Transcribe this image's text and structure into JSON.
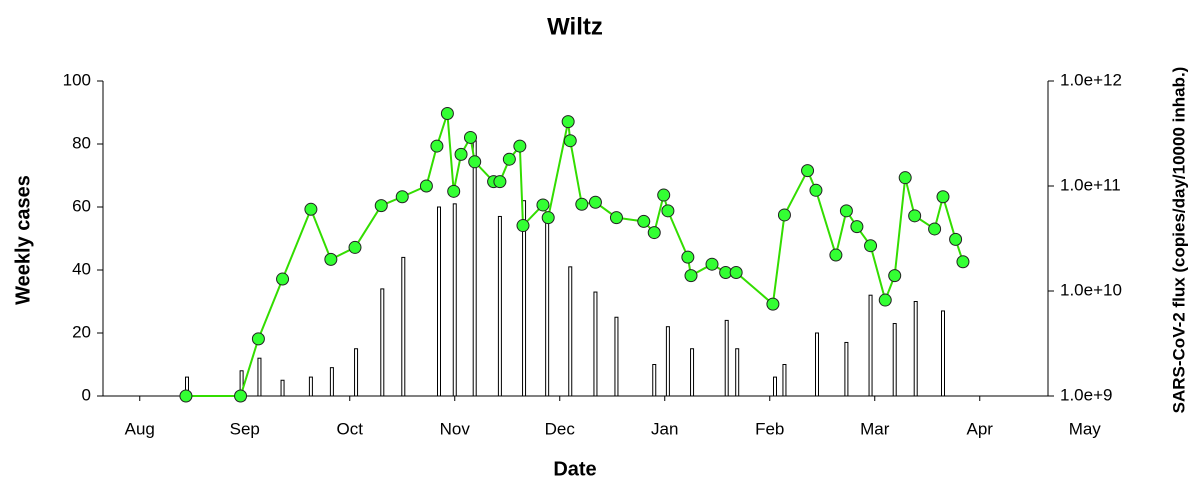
{
  "chart_data": {
    "type": "bar",
    "title": "Wiltz",
    "x_label": "Date",
    "y_label": "Weekly cases",
    "y2_label": "SARS-CoV-2 flux (copies/day/10000 inhab.)",
    "xlim": [
      0.15,
      9.15
    ],
    "xticks": [
      {
        "value": 0.5,
        "label": "Aug"
      },
      {
        "value": 1.5,
        "label": "Sep"
      },
      {
        "value": 2.5,
        "label": "Oct"
      },
      {
        "value": 3.5,
        "label": "Nov"
      },
      {
        "value": 4.5,
        "label": "Dec"
      },
      {
        "value": 5.5,
        "label": "Jan"
      },
      {
        "value": 6.5,
        "label": "Feb"
      },
      {
        "value": 7.5,
        "label": "Mar"
      },
      {
        "value": 8.5,
        "label": "Apr"
      },
      {
        "value": 9.5,
        "label": "May"
      }
    ],
    "ylim": [
      0,
      100
    ],
    "yticks": [
      0,
      20,
      40,
      60,
      80,
      100
    ],
    "y2lim": [
      1000000000.0,
      1000000000000.0
    ],
    "y2scale": "log",
    "y2ticks": [
      {
        "value": 1000000000.0,
        "label": "1.0e+9"
      },
      {
        "value": 10000000000.0,
        "label": "1.0e+10"
      },
      {
        "value": 100000000000.0,
        "label": "1.0e+11"
      },
      {
        "value": 1000000000000.0,
        "label": "1.0e+12"
      }
    ],
    "series": [
      {
        "type": "bar",
        "color": "#000000",
        "x": [
          0.95,
          1.47,
          1.64,
          1.86,
          2.13,
          2.33,
          2.56,
          2.81,
          3.01,
          3.35,
          3.5,
          3.69,
          3.93,
          4.16,
          4.38,
          4.6,
          4.84,
          5.04,
          5.4,
          5.53,
          5.76,
          6.09,
          6.19,
          6.55,
          6.64,
          6.95,
          7.23,
          7.46,
          7.69,
          7.89,
          8.15
        ],
        "values": [
          6,
          8,
          12,
          5,
          6,
          9,
          15,
          34,
          44,
          60,
          61,
          81,
          57,
          62,
          57,
          41,
          33,
          25,
          10,
          22,
          15,
          24,
          15,
          6,
          10,
          20,
          17,
          32,
          23,
          30,
          27
        ]
      },
      {
        "type": "line",
        "axis": "y2",
        "color": "#33dd00",
        "marker_color": "#33ff33",
        "x": [
          0.94,
          1.46,
          1.63,
          1.86,
          2.13,
          2.32,
          2.55,
          2.8,
          3.0,
          3.23,
          3.33,
          3.43,
          3.49,
          3.56,
          3.65,
          3.69,
          3.87,
          3.93,
          4.02,
          4.12,
          4.15,
          4.34,
          4.39,
          4.58,
          4.6,
          4.71,
          4.84,
          5.04,
          5.3,
          5.4,
          5.49,
          5.53,
          5.72,
          5.75,
          5.95,
          6.08,
          6.18,
          6.53,
          6.64,
          6.86,
          6.94,
          7.13,
          7.23,
          7.33,
          7.46,
          7.6,
          7.69,
          7.79,
          7.88,
          8.07,
          8.15,
          8.27,
          8.34
        ],
        "values": [
          1000000000.0,
          1000000000.0,
          3500000000.0,
          13000000000.0,
          60000000000.0,
          20000000000.0,
          26000000000.0,
          65000000000.0,
          79000000000.0,
          100000000000.0,
          240000000000.0,
          490000000000.0,
          89000000000.0,
          200000000000.0,
          290000000000.0,
          170000000000.0,
          110000000000.0,
          110000000000.0,
          180000000000.0,
          240000000000.0,
          42000000000.0,
          66000000000.0,
          50000000000.0,
          410000000000.0,
          270000000000.0,
          67000000000.0,
          70000000000.0,
          50000000000.0,
          46000000000.0,
          36000000000.0,
          82000000000.0,
          58000000000.0,
          21000000000.0,
          14000000000.0,
          18000000000.0,
          15000000000.0,
          15000000000.0,
          7500000000.0,
          53000000000.0,
          140000000000.0,
          91000000000.0,
          22000000000.0,
          58000000000.0,
          41000000000.0,
          27000000000.0,
          8200000000.0,
          14000000000.0,
          120000000000.0,
          52000000000.0,
          39000000000.0,
          79000000000.0,
          31000000000.0,
          19000000000.0
        ]
      }
    ]
  }
}
